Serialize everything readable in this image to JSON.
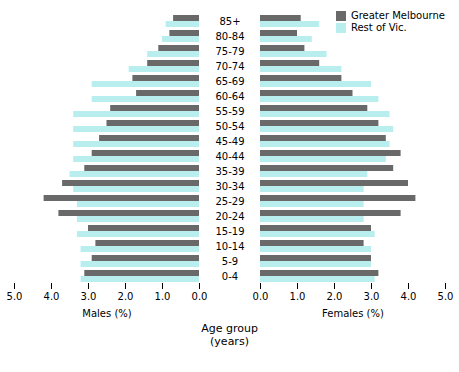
{
  "chart_data": [
    {
      "type": "bar",
      "orientation": "horizontal",
      "xlabel": "Males (%)",
      "ylabel": "Age group\n(years)",
      "categories": [
        "0-4",
        "5-9",
        "10-14",
        "15-19",
        "20-24",
        "25-29",
        "30-34",
        "35-39",
        "40-44",
        "45-49",
        "50-54",
        "55-59",
        "60-64",
        "65-69",
        "70-74",
        "75-79",
        "80-84",
        "85+"
      ],
      "series": [
        {
          "name": "Greater Melbourne",
          "color": "#696969",
          "values": [
            3.1,
            2.9,
            2.8,
            3.0,
            3.8,
            4.2,
            3.7,
            3.1,
            2.9,
            2.7,
            2.5,
            2.4,
            1.7,
            1.8,
            1.4,
            1.1,
            0.8,
            0.7
          ]
        },
        {
          "name": "Rest of Vic.",
          "color": "#b8eeee",
          "values": [
            3.2,
            3.2,
            3.2,
            3.3,
            3.3,
            3.3,
            3.4,
            3.5,
            3.4,
            3.4,
            3.4,
            3.4,
            2.9,
            2.9,
            1.9,
            1.4,
            1.0,
            0.9
          ]
        }
      ],
      "xlim": [
        5.0,
        0
      ],
      "xticks": [
        0,
        1,
        2,
        3,
        4,
        5
      ]
    },
    {
      "type": "bar",
      "orientation": "horizontal",
      "xlabel": "Females (%)",
      "categories": [
        "0-4",
        "5-9",
        "10-14",
        "15-19",
        "20-24",
        "25-29",
        "30-34",
        "35-39",
        "40-44",
        "45-49",
        "50-54",
        "55-59",
        "60-64",
        "65-69",
        "70-74",
        "75-79",
        "80-84",
        "85+"
      ],
      "series": [
        {
          "name": "Greater Melbourne",
          "color": "#696969",
          "values": [
            3.2,
            3.0,
            2.8,
            3.0,
            3.8,
            4.2,
            4.0,
            3.6,
            3.8,
            3.4,
            3.2,
            2.9,
            2.5,
            2.2,
            1.6,
            1.2,
            1.0,
            1.1
          ]
        },
        {
          "name": "Rest of Vic.",
          "color": "#b8eeee",
          "values": [
            3.1,
            3.0,
            3.0,
            3.1,
            2.8,
            2.8,
            2.8,
            2.9,
            3.4,
            3.5,
            3.6,
            3.5,
            3.2,
            3.0,
            2.2,
            1.8,
            1.4,
            1.6
          ]
        }
      ],
      "xlim": [
        0,
        5.0
      ],
      "xticks": [
        0,
        1,
        2,
        3,
        4,
        5
      ],
      "legend": "upper right"
    }
  ]
}
